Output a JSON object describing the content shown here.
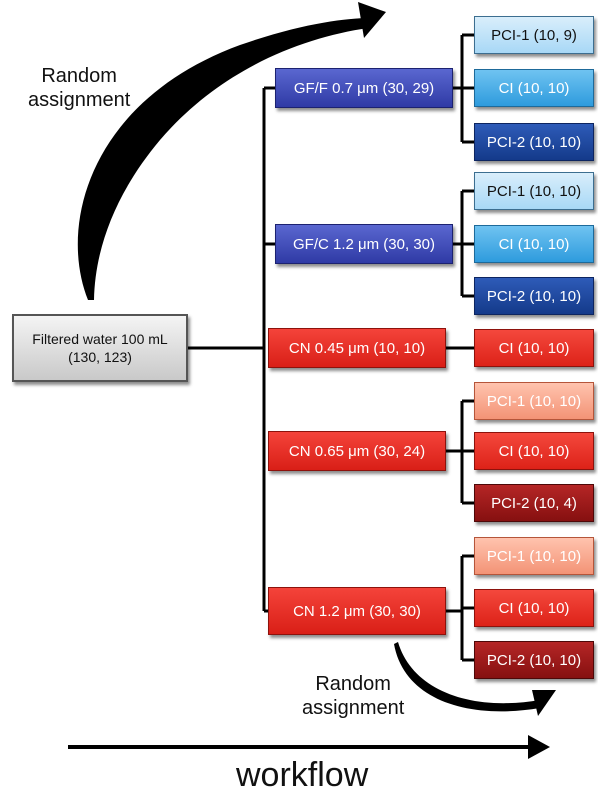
{
  "source": {
    "line1": "Filtered water 100 mL",
    "line2": "(130, 123)"
  },
  "membranes": [
    {
      "label": "GF/F 0.7 μm (30, 29)",
      "color": "#3a46b5"
    },
    {
      "label": "GF/C 1.2 μm (30, 30)",
      "color": "#3a46b5"
    },
    {
      "label": "CN 0.45 μm (10, 10)",
      "color": "#e8291f"
    },
    {
      "label": "CN 0.65 μm (30, 24)",
      "color": "#e8291f"
    },
    {
      "label": "CN 1.2 μm (30, 30)",
      "color": "#e8291f"
    }
  ],
  "treatments": [
    {
      "label": "PCI-1 (10, 9)",
      "color": "#bfe3f8"
    },
    {
      "label": "CI (10, 10)",
      "color": "#44abe6"
    },
    {
      "label": "PCI-2 (10, 10)",
      "color": "#1f4aa0"
    },
    {
      "label": "PCI-1 (10, 10)",
      "color": "#bfe3f8"
    },
    {
      "label": "CI (10, 10)",
      "color": "#44abe6"
    },
    {
      "label": "PCI-2 (10, 10)",
      "color": "#1f4aa0"
    },
    {
      "label": "CI (10, 10)",
      "color": "#e8291f"
    },
    {
      "label": "PCI-1 (10, 10)",
      "color": "#f8a98f"
    },
    {
      "label": "CI (10, 10)",
      "color": "#e8291f"
    },
    {
      "label": "PCI-2 (10, 4)",
      "color": "#9e1a1a"
    },
    {
      "label": "PCI-1 (10, 10)",
      "color": "#f8a98f"
    },
    {
      "label": "CI (10, 10)",
      "color": "#e8291f"
    },
    {
      "label": "PCI-2 (10, 10)",
      "color": "#9e1a1a"
    }
  ],
  "annotations": {
    "random_assignment_top": {
      "line1": "Random",
      "line2": "assignment"
    },
    "random_assignment_bottom": {
      "line1": "Random",
      "line2": "assignment"
    },
    "workflow": "workflow"
  }
}
